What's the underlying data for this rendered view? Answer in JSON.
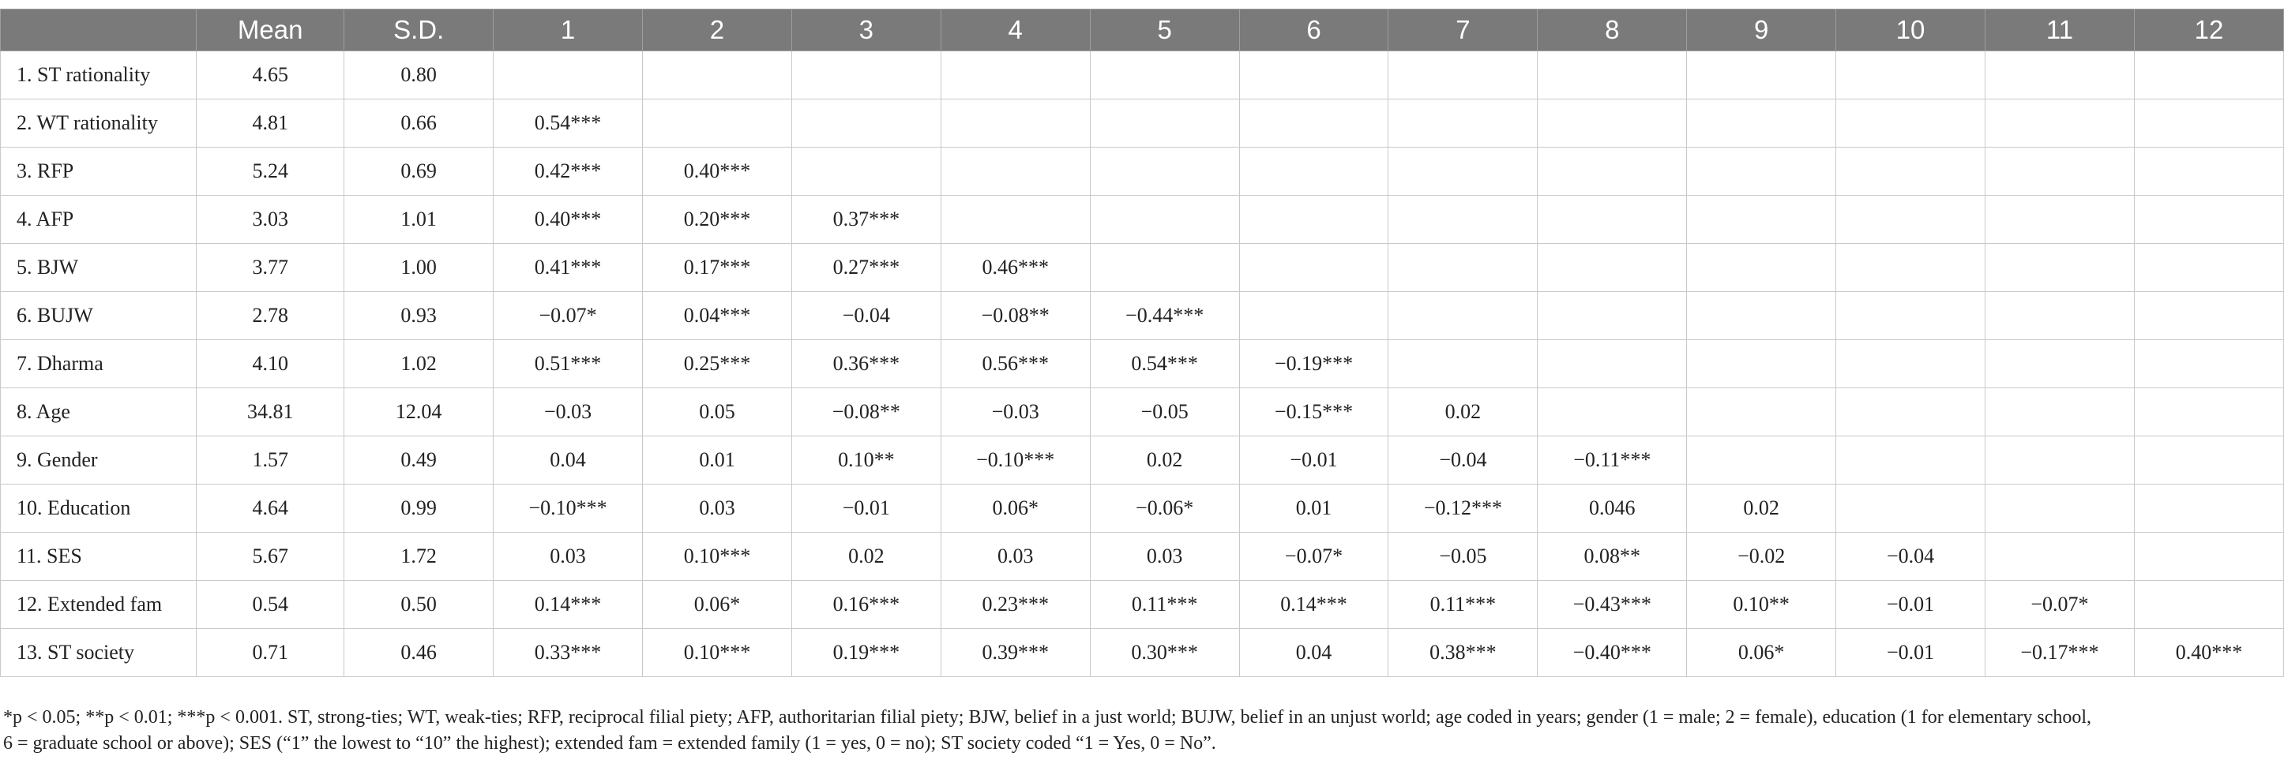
{
  "table": {
    "headers": [
      "",
      "Mean",
      "S.D.",
      "1",
      "2",
      "3",
      "4",
      "5",
      "6",
      "7",
      "8",
      "9",
      "10",
      "11",
      "12"
    ],
    "rows": [
      [
        "1. ST rationality",
        "4.65",
        "0.80",
        "",
        "",
        "",
        "",
        "",
        "",
        "",
        "",
        "",
        "",
        "",
        ""
      ],
      [
        "2. WT rationality",
        "4.81",
        "0.66",
        "0.54***",
        "",
        "",
        "",
        "",
        "",
        "",
        "",
        "",
        "",
        "",
        ""
      ],
      [
        "3. RFP",
        "5.24",
        "0.69",
        "0.42***",
        "0.40***",
        "",
        "",
        "",
        "",
        "",
        "",
        "",
        "",
        "",
        ""
      ],
      [
        "4. AFP",
        "3.03",
        "1.01",
        "0.40***",
        "0.20***",
        "0.37***",
        "",
        "",
        "",
        "",
        "",
        "",
        "",
        "",
        ""
      ],
      [
        "5. BJW",
        "3.77",
        "1.00",
        "0.41***",
        "0.17***",
        "0.27***",
        "0.46***",
        "",
        "",
        "",
        "",
        "",
        "",
        "",
        ""
      ],
      [
        "6. BUJW",
        "2.78",
        "0.93",
        "−0.07*",
        "0.04***",
        "−0.04",
        "−0.08**",
        "−0.44***",
        "",
        "",
        "",
        "",
        "",
        "",
        ""
      ],
      [
        "7. Dharma",
        "4.10",
        "1.02",
        "0.51***",
        "0.25***",
        "0.36***",
        "0.56***",
        "0.54***",
        "−0.19***",
        "",
        "",
        "",
        "",
        "",
        ""
      ],
      [
        "8. Age",
        "34.81",
        "12.04",
        "−0.03",
        "0.05",
        "−0.08**",
        "−0.03",
        "−0.05",
        "−0.15***",
        "0.02",
        "",
        "",
        "",
        "",
        ""
      ],
      [
        "9. Gender",
        "1.57",
        "0.49",
        "0.04",
        "0.01",
        "0.10**",
        "−0.10***",
        "0.02",
        "−0.01",
        "−0.04",
        "−0.11***",
        "",
        "",
        "",
        ""
      ],
      [
        "10. Education",
        "4.64",
        "0.99",
        "−0.10***",
        "0.03",
        "−0.01",
        "0.06*",
        "−0.06*",
        "0.01",
        "−0.12***",
        "0.046",
        "0.02",
        "",
        "",
        ""
      ],
      [
        "11. SES",
        "5.67",
        "1.72",
        "0.03",
        "0.10***",
        "0.02",
        "0.03",
        "0.03",
        "−0.07*",
        "−0.05",
        "0.08**",
        "−0.02",
        "−0.04",
        "",
        ""
      ],
      [
        "12. Extended fam",
        "0.54",
        "0.50",
        "0.14***",
        "0.06*",
        "0.16***",
        "0.23***",
        "0.11***",
        "0.14***",
        "0.11***",
        "−0.43***",
        "0.10**",
        "−0.01",
        "−0.07*",
        ""
      ],
      [
        "13. ST society",
        "0.71",
        "0.46",
        "0.33***",
        "0.10***",
        "0.19***",
        "0.39***",
        "0.30***",
        "0.04",
        "0.38***",
        "−0.40***",
        "0.06*",
        "−0.01",
        "−0.17***",
        "0.40***"
      ]
    ]
  },
  "note": {
    "line1": "*p < 0.05; **p < 0.01; ***p < 0.001. ST, strong-ties; WT, weak-ties; RFP, reciprocal filial piety; AFP, authoritarian filial piety; BJW, belief in a just world; BUJW, belief in an unjust world; age coded in years; gender (1 = male; 2 = female), education (1 for elementary school,",
    "line2": "6 = graduate school or above); SES (“1” the lowest to “10” the highest); extended fam = extended family (1 = yes, 0 = no); ST society coded “1 = Yes, 0 = No”."
  }
}
